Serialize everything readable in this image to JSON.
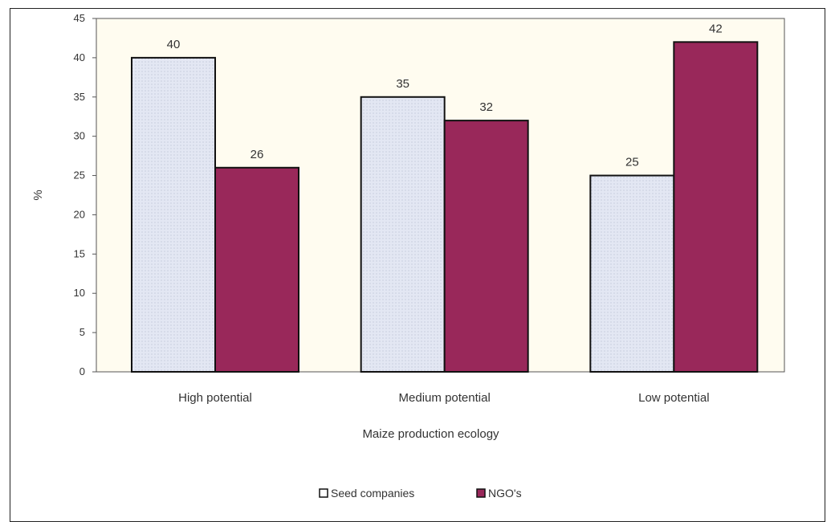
{
  "chart_data": {
    "type": "bar",
    "categories": [
      "High potential",
      "Medium potential",
      "Low potential"
    ],
    "series": [
      {
        "name": "Seed companies",
        "values": [
          40,
          35,
          25
        ],
        "color": "#e3e7f3"
      },
      {
        "name": "NGO's",
        "values": [
          26,
          32,
          42
        ],
        "color": "#99285a"
      }
    ],
    "xlabel": "Maize production ecology",
    "ylabel": "%",
    "ylim": [
      0,
      45
    ],
    "yticks": [
      0,
      5,
      10,
      15,
      20,
      25,
      30,
      35,
      40,
      45
    ],
    "grid": false,
    "legend": "bottom-center",
    "plot_background": "#fffcf0"
  }
}
